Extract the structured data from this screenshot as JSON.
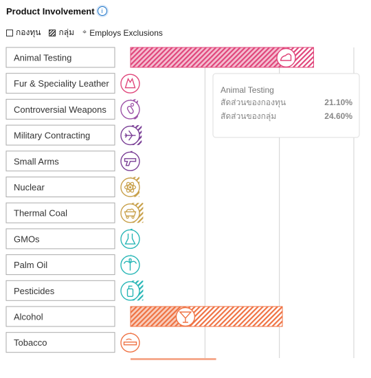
{
  "header": {
    "title": "Product Involvement",
    "info": "i"
  },
  "legend": {
    "fund": "กองทุน",
    "group": "กลุ่ม",
    "exclusions": "Employs Exclusions"
  },
  "tooltip": {
    "title": "Animal Testing",
    "rows": [
      {
        "label": "สัดส่วนของกองทุน",
        "value": "21.10%"
      },
      {
        "label": "สัดส่วนของกลุ่ม",
        "value": "24.60%"
      }
    ]
  },
  "chart_data": {
    "type": "bar",
    "orientation": "horizontal",
    "categories": [
      "Animal Testing",
      "Fur & Speciality Leather",
      "Controversial Weapons",
      "Military Contracting",
      "Small Arms",
      "Nuclear",
      "Thermal Coal",
      "GMOs",
      "Palm Oil",
      "Pesticides",
      "Alcohol",
      "Tobacco"
    ],
    "series": [
      {
        "name": "กองทุน",
        "values": [
          21.1,
          0,
          0,
          0,
          0,
          0,
          0,
          0,
          0,
          0,
          7.1,
          0
        ]
      },
      {
        "name": "กลุ่ม",
        "values": [
          24.6,
          0,
          1.0,
          1.5,
          0.3,
          1.2,
          1.7,
          0.3,
          0.3,
          1.7,
          20.4,
          0.1
        ]
      }
    ],
    "xlim": [
      0,
      30
    ],
    "grid": true,
    "colors": {
      "Animal Testing": "#e0457a",
      "Fur & Speciality Leather": "#e0457a",
      "Controversial Weapons": "#9b4fa6",
      "Military Contracting": "#7a3f96",
      "Small Arms": "#7a3f96",
      "Nuclear": "#c8a04a",
      "Thermal Coal": "#c8a04a",
      "GMOs": "#27b6b6",
      "Palm Oil": "#27b6b6",
      "Pesticides": "#27b6b6",
      "Alcohol": "#ef7243",
      "Tobacco": "#ef7243"
    },
    "icons": [
      "flask-bunny-icon",
      "fur-icon",
      "grenade-icon",
      "fighter-jet-icon",
      "pistol-icon",
      "atom-icon",
      "coal-cart-icon",
      "beaker-icon",
      "palm-tree-icon",
      "spray-bottle-icon",
      "cocktail-icon",
      "cigarette-icon"
    ]
  }
}
